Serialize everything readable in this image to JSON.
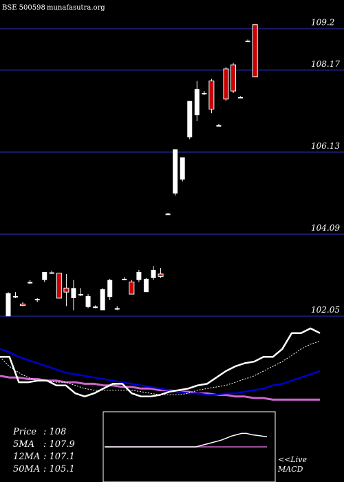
{
  "header": {
    "symbol": "BSE 500598",
    "site": "munafasutra.org"
  },
  "chart_data": {
    "type": "candlestick",
    "price_levels": [
      "109.2",
      "108.17",
      "106.13",
      "104.09",
      "102.05"
    ],
    "ylim": [
      101.9,
      109.45
    ],
    "candles": [
      {
        "o": 102.05,
        "h": 102.65,
        "l": 102.05,
        "c": 102.62
      },
      {
        "o": 102.55,
        "h": 102.65,
        "l": 102.5,
        "c": 102.55
      },
      {
        "o": 102.35,
        "h": 102.4,
        "l": 102.3,
        "c": 102.33
      },
      {
        "o": 102.9,
        "h": 102.95,
        "l": 102.85,
        "c": 102.9
      },
      {
        "o": 102.45,
        "h": 102.5,
        "l": 102.4,
        "c": 102.48
      },
      {
        "o": 102.95,
        "h": 103.15,
        "l": 102.9,
        "c": 103.15
      },
      {
        "o": 103.14,
        "h": 103.18,
        "l": 103.12,
        "c": 103.14
      },
      {
        "o": 103.12,
        "h": 103.13,
        "l": 102.5,
        "c": 102.5
      },
      {
        "o": 102.75,
        "h": 103.1,
        "l": 102.3,
        "c": 102.65
      },
      {
        "o": 102.5,
        "h": 102.95,
        "l": 102.2,
        "c": 102.75
      },
      {
        "o": 102.58,
        "h": 102.75,
        "l": 102.55,
        "c": 102.6
      },
      {
        "o": 102.28,
        "h": 102.6,
        "l": 102.25,
        "c": 102.55
      },
      {
        "o": 102.29,
        "h": 102.32,
        "l": 102.25,
        "c": 102.29
      },
      {
        "o": 102.2,
        "h": 102.75,
        "l": 102.2,
        "c": 102.72
      },
      {
        "o": 102.53,
        "h": 102.98,
        "l": 102.45,
        "c": 102.95
      },
      {
        "o": 102.25,
        "h": 102.3,
        "l": 102.2,
        "c": 102.25
      },
      {
        "o": 102.98,
        "h": 103.02,
        "l": 102.95,
        "c": 102.98
      },
      {
        "o": 102.9,
        "h": 102.95,
        "l": 102.6,
        "c": 102.6
      },
      {
        "o": 102.95,
        "h": 103.2,
        "l": 102.9,
        "c": 103.15
      },
      {
        "o": 102.65,
        "h": 103.0,
        "l": 102.65,
        "c": 102.98
      },
      {
        "o": 103.0,
        "h": 103.3,
        "l": 102.95,
        "c": 103.2
      },
      {
        "o": 103.1,
        "h": 103.25,
        "l": 103.0,
        "c": 103.04
      },
      {
        "o": 104.6,
        "h": 104.62,
        "l": 104.58,
        "c": 104.6
      },
      {
        "o": 105.1,
        "h": 106.2,
        "l": 105.05,
        "c": 106.2
      },
      {
        "o": 105.45,
        "h": 106.0,
        "l": 105.4,
        "c": 106.0
      },
      {
        "o": 106.5,
        "h": 107.4,
        "l": 106.45,
        "c": 107.4
      },
      {
        "o": 107.05,
        "h": 107.9,
        "l": 106.9,
        "c": 107.7
      },
      {
        "o": 107.6,
        "h": 107.65,
        "l": 107.55,
        "c": 107.6
      },
      {
        "o": 107.9,
        "h": 107.95,
        "l": 107.1,
        "c": 107.2
      },
      {
        "o": 106.8,
        "h": 106.83,
        "l": 106.77,
        "c": 106.8
      },
      {
        "o": 108.2,
        "h": 108.25,
        "l": 107.4,
        "c": 107.45
      },
      {
        "o": 108.3,
        "h": 108.35,
        "l": 107.6,
        "c": 107.65
      },
      {
        "o": 107.5,
        "h": 107.52,
        "l": 107.48,
        "c": 107.5
      },
      {
        "o": 108.9,
        "h": 108.93,
        "l": 108.87,
        "c": 108.9
      },
      {
        "o": 109.3,
        "h": 109.3,
        "l": 108.0,
        "c": 108.0
      }
    ],
    "legend": [
      {
        "label": "Price",
        "value": "108"
      },
      {
        "label": "5MA",
        "value": "107.9"
      },
      {
        "label": "12MA",
        "value": "107.1"
      },
      {
        "label": "50MA",
        "value": "105.1"
      }
    ],
    "ma_panel": {
      "ylim": [
        0,
        100
      ],
      "price": [
        79,
        79,
        63,
        63,
        64,
        64,
        61,
        61,
        56,
        54,
        56,
        59,
        62,
        62,
        56,
        54,
        54,
        55,
        57,
        58,
        59,
        61,
        62,
        66,
        70,
        73,
        75,
        76,
        79,
        79,
        84,
        94,
        94,
        97,
        94
      ],
      "ma5": [
        79,
        73,
        69,
        66,
        64,
        64,
        63,
        63,
        61,
        59,
        58,
        58,
        58,
        58,
        58,
        57,
        56,
        55,
        55,
        55,
        56,
        58,
        59,
        60,
        61,
        63,
        65,
        67,
        70,
        73,
        76,
        80,
        84,
        87,
        89
      ],
      "ma12": [
        84,
        82,
        79,
        77,
        75,
        73,
        71,
        69,
        68,
        67,
        66,
        65,
        64,
        63,
        62,
        61,
        60,
        59,
        58,
        57,
        56,
        56,
        55,
        55,
        56,
        56,
        57,
        58,
        59,
        61,
        62,
        64,
        66,
        68,
        70
      ],
      "ma50": [
        67,
        66,
        66,
        65,
        65,
        64,
        64,
        63,
        63,
        62,
        62,
        61,
        61,
        60,
        60,
        59,
        59,
        58,
        58,
        57,
        57,
        56,
        56,
        55,
        55,
        54,
        54,
        53,
        53,
        52,
        52,
        52,
        52,
        52,
        52
      ]
    },
    "macd_panel": {
      "label_line1": "<<Live",
      "label_line2": "MACD",
      "macd": [
        50,
        50,
        50,
        50,
        50,
        50,
        50,
        50,
        50,
        50,
        50,
        50,
        50,
        50,
        50,
        50,
        50,
        50,
        50,
        52,
        54,
        56,
        58,
        60,
        63,
        66,
        68,
        70,
        70,
        68,
        67,
        66,
        65
      ],
      "signal": [
        50,
        50,
        50,
        50,
        50,
        50,
        50,
        50,
        50,
        50,
        50,
        50,
        50,
        50,
        50,
        50,
        50,
        50,
        50,
        50,
        50,
        50,
        50,
        50,
        50,
        50,
        50,
        50,
        50,
        50,
        50,
        50,
        50
      ]
    },
    "colors": {
      "background": "#000000",
      "up_candle": "#ffffff",
      "down_candle": "#cc0000",
      "price_line": "#191970",
      "ma5": "#ffffff",
      "ma12": "#0000cc",
      "ma50": "#cc66cc",
      "macd_line": "#ffffff",
      "signal_line": "#cc66cc"
    }
  }
}
